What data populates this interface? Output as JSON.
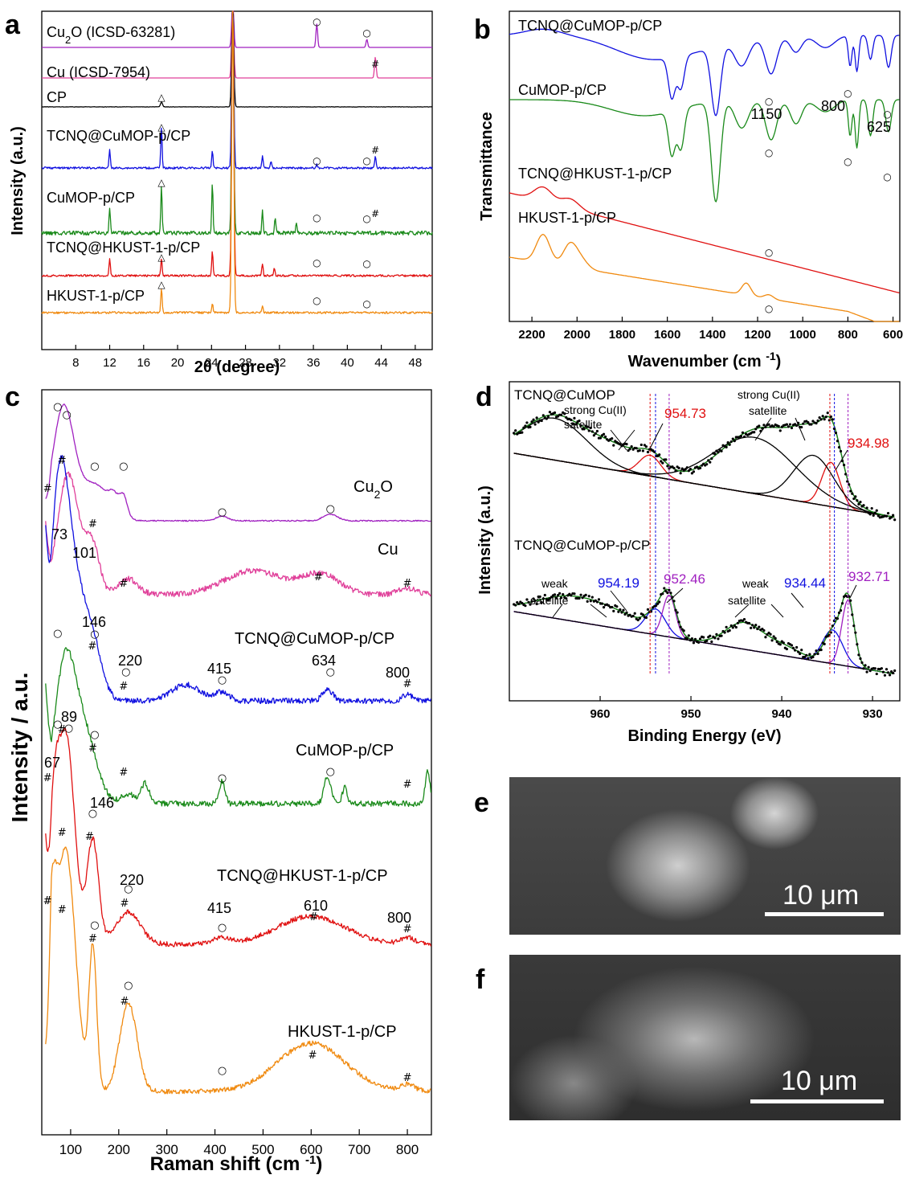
{
  "panels": {
    "a": {
      "label": "a",
      "xlabel": "2θ (degree)",
      "ylabel": "Intensity (a.u.)",
      "xticks": [
        "8",
        "12",
        "16",
        "20",
        "24",
        "28",
        "32",
        "36",
        "40",
        "44",
        "48"
      ]
    },
    "b": {
      "label": "b",
      "xlabel": "Wavenumber (cm -1)",
      "ylabel": "Transmittance",
      "xticks": [
        "2200",
        "2000",
        "1800",
        "1600",
        "1400",
        "1200",
        "1000",
        "800",
        "600"
      ],
      "annotations": [
        "1150",
        "800",
        "625"
      ]
    },
    "c": {
      "label": "c",
      "xlabel": "Raman shift (cm -1)",
      "ylabel": "Intensity / a.u.",
      "xticks": [
        "100",
        "200",
        "300",
        "400",
        "500",
        "600",
        "700",
        "800"
      ],
      "annotations": [
        "73",
        "101",
        "146",
        "220",
        "415",
        "634",
        "800",
        "89",
        "67",
        "146",
        "220",
        "415",
        "610",
        "800"
      ]
    },
    "d": {
      "label": "d",
      "xlabel": "Binding Energy (eV)",
      "ylabel": "Intensity (a.u.)",
      "xticks": [
        "960",
        "950",
        "940",
        "930"
      ],
      "top_title": "TCNQ@CuMOP",
      "bottom_title": "TCNQ@CuMOP-p/CP",
      "strong_sat_1": "strong Cu(II)",
      "strong_sat_1b": "satellite",
      "strong_sat_2": "strong Cu(II)",
      "strong_sat_2b": "satellite",
      "weak_sat_1": "weak",
      "weak_sat_1b": "satellite",
      "weak_sat_2": "weak",
      "weak_sat_2b": "satellite",
      "peaks": [
        "954.73",
        "934.98",
        "954.19",
        "952.46",
        "934.44",
        "932.71"
      ]
    },
    "e": {
      "label": "e",
      "scalebar": "10 μm"
    },
    "f": {
      "label": "f",
      "scalebar": "10 μm"
    }
  },
  "colors": {
    "purple": "#a020c0",
    "magenta": "#e0409a",
    "black": "#000000",
    "blue": "#1010e0",
    "green": "#1a8a1a",
    "red": "#e01010",
    "orange": "#f08a10"
  },
  "chart_data": [
    {
      "type": "line",
      "title": "",
      "xlabel": "2θ (degree)",
      "ylabel": "Intensity (a.u.)",
      "xlim": [
        4,
        50
      ],
      "series": [
        {
          "name": "Cu2O (ICSD-63281)",
          "color": "purple"
        },
        {
          "name": "Cu (ICSD-7954)",
          "color": "magenta"
        },
        {
          "name": "CP",
          "color": "black"
        },
        {
          "name": "TCNQ@CuMOP-p/CP",
          "color": "blue"
        },
        {
          "name": "CuMOP-p/CP",
          "color": "green"
        },
        {
          "name": "TCNQ@HKUST-1-p/CP",
          "color": "red"
        },
        {
          "name": "HKUST-1-p/CP",
          "color": "orange"
        }
      ]
    },
    {
      "type": "line",
      "title": "",
      "xlabel": "Wavenumber (cm -1)",
      "ylabel": "Transmittance",
      "xlim": [
        2300,
        570
      ],
      "series": [
        {
          "name": "TCNQ@CuMOP-p/CP",
          "color": "blue"
        },
        {
          "name": "CuMOP-p/CP",
          "color": "green"
        },
        {
          "name": "TCNQ@HKUST-1-p/CP",
          "color": "red"
        },
        {
          "name": "HKUST-1-p/CP",
          "color": "orange"
        }
      ]
    },
    {
      "type": "line",
      "title": "",
      "xlabel": "Raman shift (cm -1)",
      "ylabel": "Intensity / a.u.",
      "xlim": [
        40,
        850
      ],
      "series": [
        {
          "name": "Cu2O",
          "color": "purple"
        },
        {
          "name": "Cu",
          "color": "magenta"
        },
        {
          "name": "TCNQ@CuMOP-p/CP",
          "color": "blue"
        },
        {
          "name": "CuMOP-p/CP",
          "color": "green"
        },
        {
          "name": "TCNQ@HKUST-1-p/CP",
          "color": "red"
        },
        {
          "name": "HKUST-1-p/CP",
          "color": "orange"
        }
      ]
    },
    {
      "type": "line",
      "title": "",
      "xlabel": "Binding Energy (eV)",
      "ylabel": "Intensity (a.u.)",
      "xlim": [
        970,
        927
      ],
      "series": [
        {
          "name": "TCNQ@CuMOP"
        },
        {
          "name": "TCNQ@CuMOP-p/CP"
        }
      ]
    }
  ]
}
